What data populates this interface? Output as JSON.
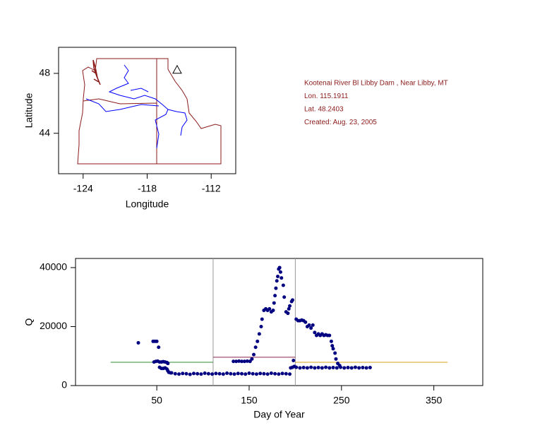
{
  "chart_data": [
    {
      "type": "map",
      "xlabel": "Longitude",
      "ylabel": "Latitude",
      "xlim": [
        -126.3,
        -109.7
      ],
      "ylim": [
        41.3,
        49.74
      ],
      "xticks": [
        -124,
        -118,
        -112
      ],
      "yticks": [
        44,
        48
      ],
      "x": [
        -115.1911
      ],
      "values": [
        48.2403
      ],
      "color": "#000000",
      "marker": "triangle",
      "annotations": [
        "Kootenai River Bl Libby Dam , Near Libby, MT",
        "Lon. 115.1911",
        "Lat. 48.2403",
        "Created:   Aug. 23, 2005"
      ],
      "annotation_color": "#8b1a1a"
    },
    {
      "type": "scatter",
      "xlabel": "Day of Year",
      "ylabel": "Q",
      "xlim": [
        -38,
        403
      ],
      "ylim": [
        0,
        43100
      ],
      "xticks": [
        50,
        150,
        250,
        350
      ],
      "yticks": [
        0,
        20000,
        40000
      ],
      "color": "#000080",
      "x": [
        30,
        46,
        48,
        50,
        52,
        47,
        49,
        51,
        53,
        55,
        57,
        59,
        61,
        62,
        53,
        55,
        57,
        59,
        61,
        62,
        63,
        65,
        66,
        70,
        74,
        78,
        82,
        86,
        90,
        94,
        98,
        102,
        106,
        110,
        114,
        118,
        122,
        126,
        130,
        134,
        138,
        142,
        146,
        150,
        154,
        158,
        162,
        166,
        170,
        174,
        178,
        182,
        186,
        190,
        194,
        133,
        136,
        139,
        142,
        145,
        148,
        151,
        153,
        155,
        157,
        159,
        161,
        163,
        164,
        166,
        168,
        170,
        172,
        174,
        176,
        177,
        178,
        179,
        180,
        181,
        182,
        183,
        184,
        185,
        187,
        188,
        190,
        192,
        193,
        194,
        196,
        197,
        195,
        197,
        198,
        199,
        201,
        205,
        209,
        213,
        217,
        221,
        225,
        229,
        233,
        237,
        241,
        245,
        249,
        253,
        257,
        261,
        265,
        269,
        273,
        277,
        281,
        201,
        203,
        205,
        207,
        209,
        211,
        213,
        215,
        217,
        219,
        221,
        223,
        225,
        227,
        229,
        231,
        233,
        235,
        237,
        239,
        240,
        241,
        243,
        244,
        246,
        248
      ],
      "values": [
        14500,
        15000,
        15000,
        15000,
        13000,
        8000,
        8200,
        8300,
        8000,
        8000,
        8100,
        8000,
        7800,
        7500,
        6200,
        5800,
        5800,
        6000,
        5600,
        5000,
        4500,
        4300,
        4300,
        4000,
        3900,
        4100,
        4000,
        3800,
        4100,
        4000,
        3900,
        4200,
        4000,
        3900,
        4100,
        4000,
        3900,
        4200,
        4000,
        3900,
        4100,
        4000,
        3900,
        4200,
        4000,
        3900,
        4100,
        4000,
        3900,
        4200,
        4000,
        3900,
        4100,
        4000,
        3900,
        8200,
        8200,
        8300,
        8200,
        8200,
        8300,
        8200,
        9000,
        10500,
        13000,
        15000,
        17500,
        20000,
        22500,
        25500,
        26000,
        25500,
        26000,
        25000,
        25500,
        28000,
        30500,
        33000,
        35500,
        37000,
        39500,
        40000,
        38500,
        36500,
        34000,
        30000,
        25000,
        24500,
        26000,
        27000,
        28500,
        29000,
        6000,
        6200,
        8500,
        6500,
        6200,
        6000,
        6100,
        6000,
        6200,
        6000,
        6100,
        6000,
        6200,
        6000,
        6100,
        6000,
        6200,
        6000,
        6100,
        6000,
        6200,
        6000,
        6100,
        6000,
        6100,
        22500,
        22000,
        22000,
        22200,
        22000,
        21500,
        20000,
        20500,
        19500,
        20500,
        18000,
        17000,
        17500,
        17000,
        17500,
        17000,
        17200,
        17000,
        17000,
        15000,
        13500,
        12500,
        11000,
        9000,
        7500,
        6800
      ],
      "lines": [
        {
          "color": "#2e8b2e",
          "x": [
            0,
            111
          ],
          "values": [
            7900,
            7900
          ]
        },
        {
          "color": "#8b2252",
          "x": [
            111,
            200
          ],
          "values": [
            9600,
            9600
          ]
        },
        {
          "color": "#d4a017",
          "x": [
            200,
            365
          ],
          "values": [
            7900,
            7900
          ]
        }
      ],
      "vlines": [
        111,
        200
      ],
      "vline_color": "#999999"
    }
  ]
}
